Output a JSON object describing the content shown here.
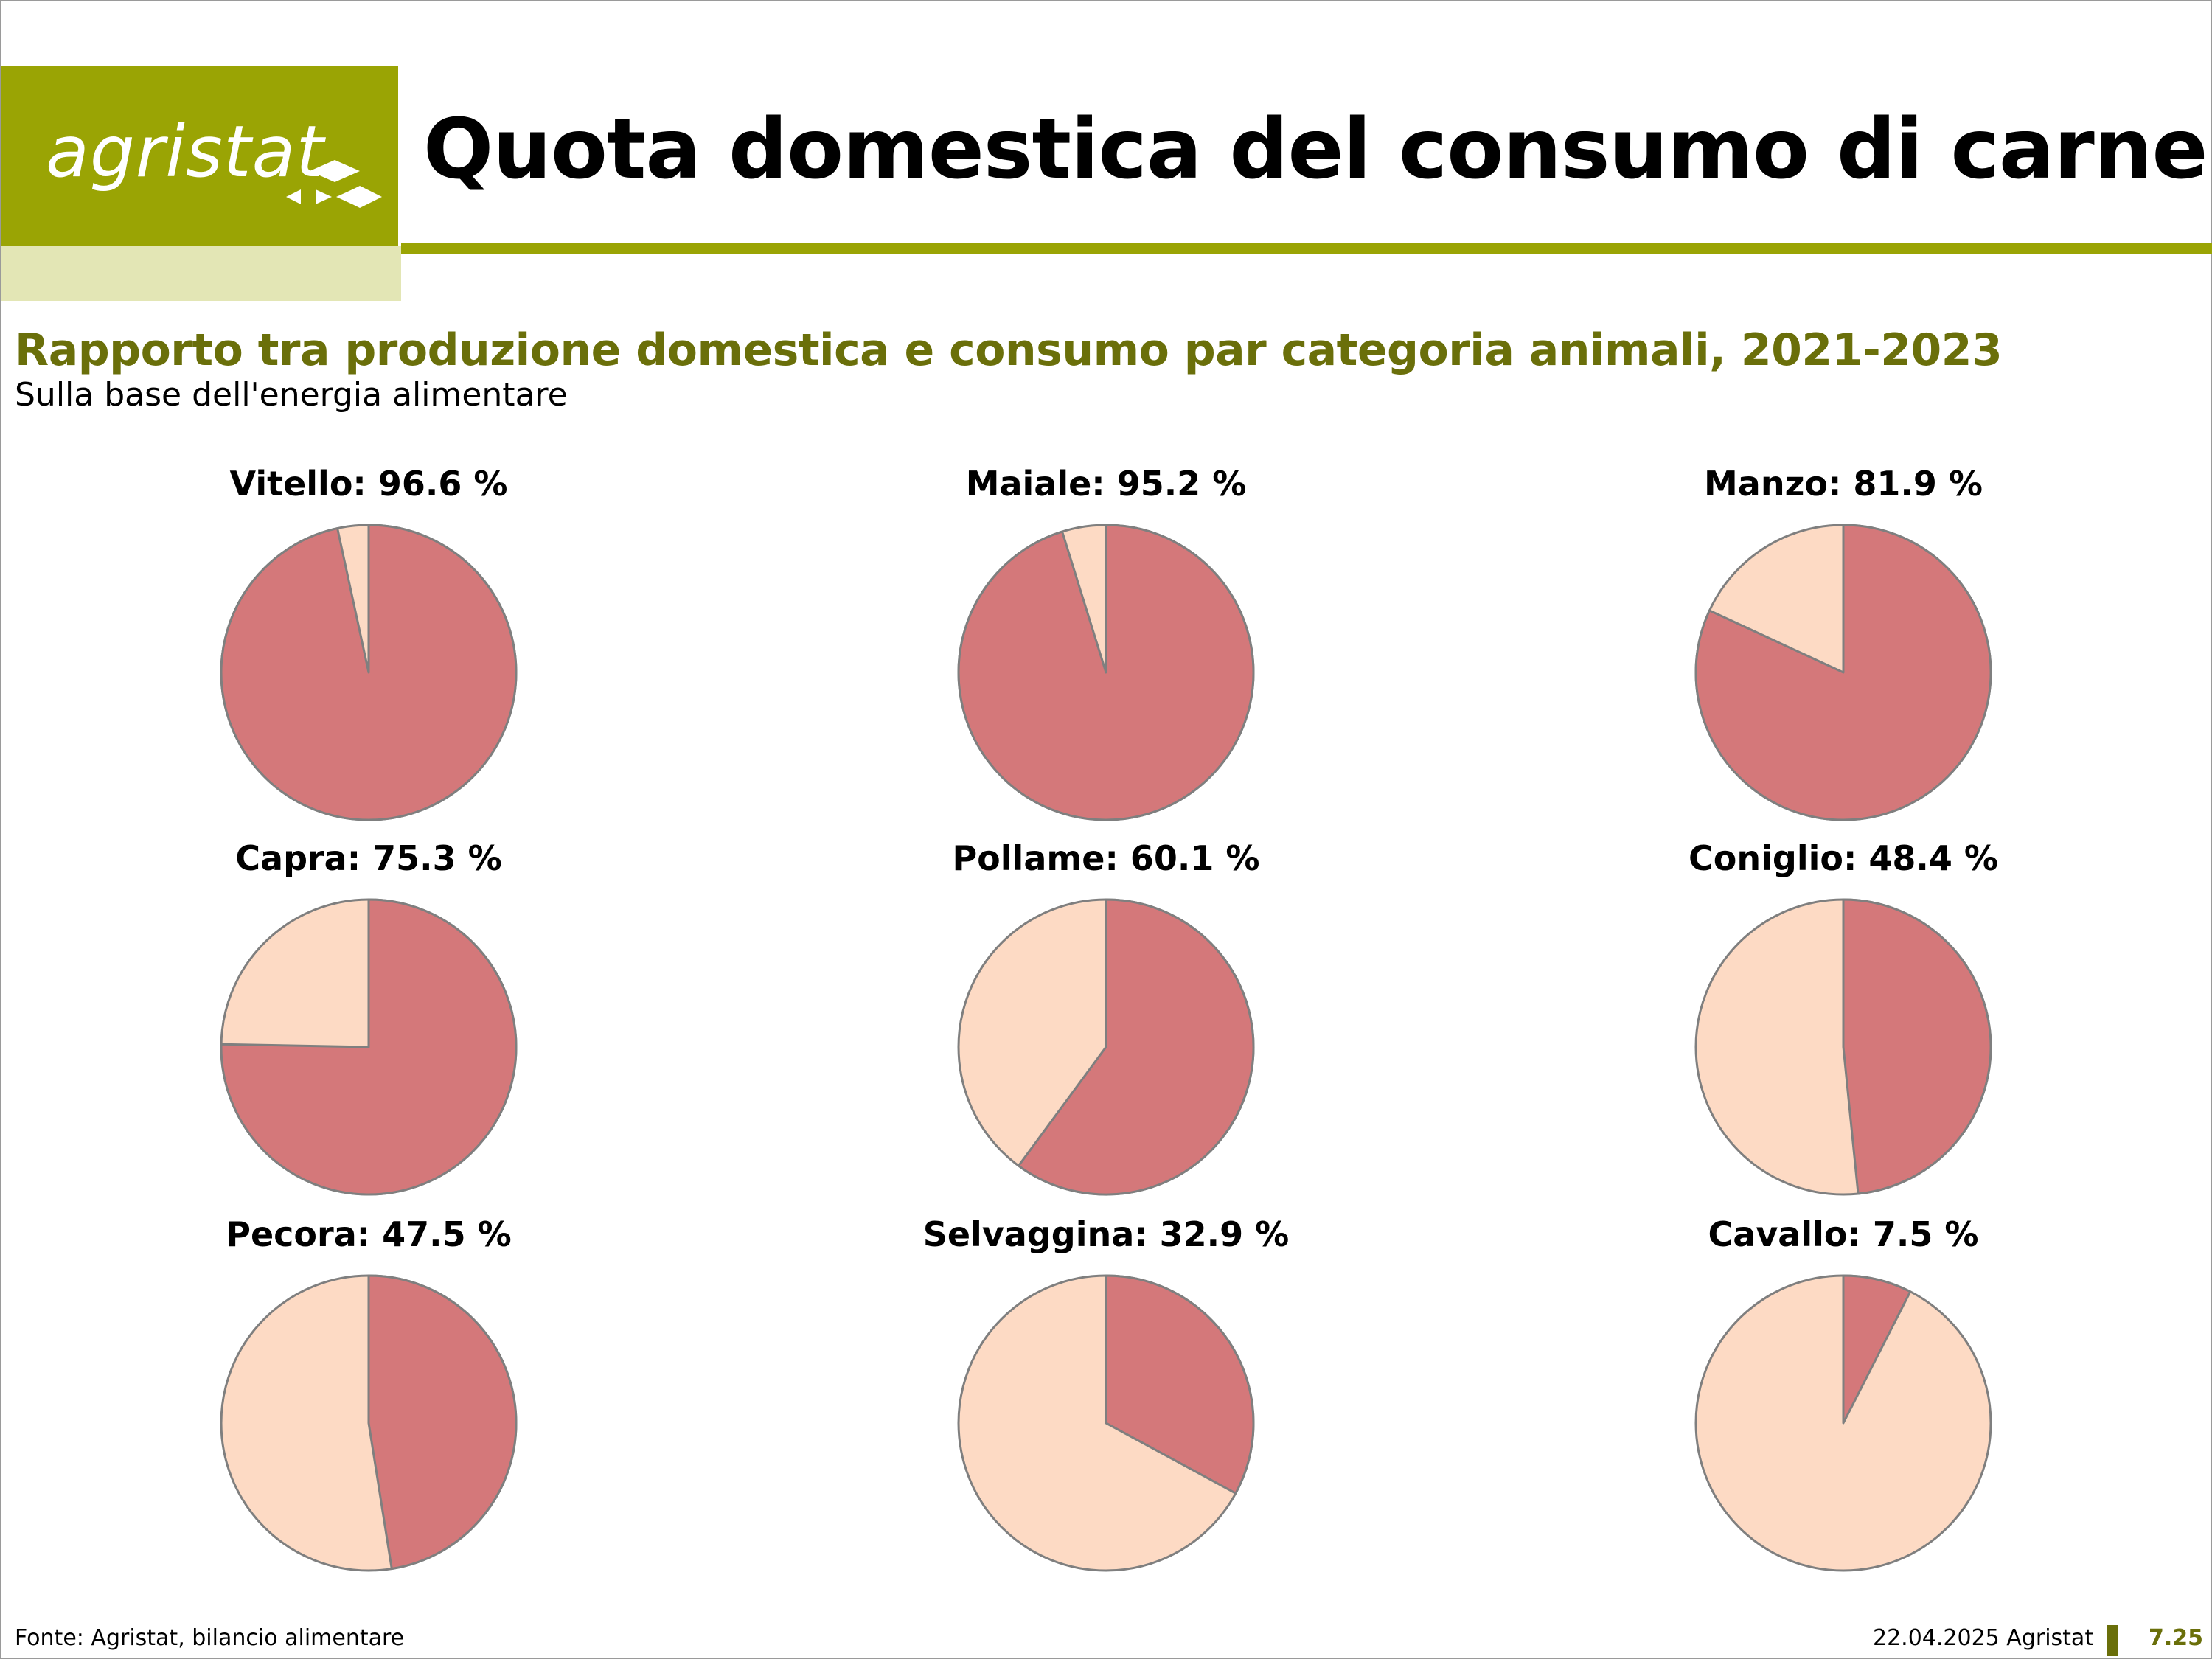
{
  "header": {
    "logo_text": "agristat",
    "title": "Quota domestica del consumo di carne"
  },
  "colors": {
    "brand_olive": "#9aa404",
    "brand_light": "#e3e6b5",
    "domestic_share": "#d4787a",
    "import_share": "#fddac4"
  },
  "chart_data": {
    "type": "pie",
    "title": "Rapporto tra produzione domestica e consumo par categoria animali, 2021-2023",
    "subtitle": "Sulla base dell'energia alimentare",
    "charts": [
      {
        "label": "Vitello: 96.6 %",
        "category": "Vitello",
        "value": 96.6
      },
      {
        "label": "Maiale: 95.2 %",
        "category": "Maiale",
        "value": 95.2
      },
      {
        "label": "Manzo: 81.9 %",
        "category": "Manzo",
        "value": 81.9
      },
      {
        "label": "Capra: 75.3 %",
        "category": "Capra",
        "value": 75.3
      },
      {
        "label": "Pollame: 60.1 %",
        "category": "Pollame",
        "value": 60.1
      },
      {
        "label": "Coniglio: 48.4 %",
        "category": "Coniglio",
        "value": 48.4
      },
      {
        "label": "Pecora: 47.5 %",
        "category": "Pecora",
        "value": 47.5
      },
      {
        "label": "Selvaggina: 32.9 %",
        "category": "Selvaggina",
        "value": 32.9
      },
      {
        "label": "Cavallo:  7.5 %",
        "category": "Cavallo",
        "value": 7.5
      }
    ]
  },
  "footer": {
    "source": "Fonte: Agristat, bilancio alimentare",
    "date": "22.04.2025 Agristat",
    "page": "7.25"
  }
}
